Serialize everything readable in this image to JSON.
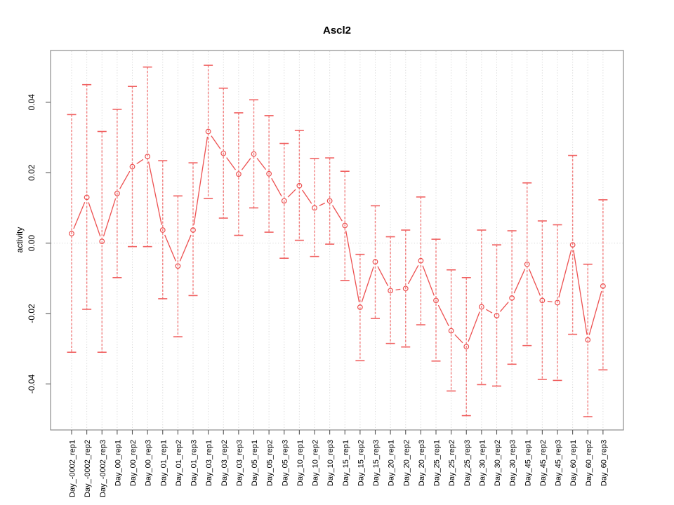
{
  "chart_data": {
    "type": "line",
    "title": "Ascl2",
    "xlabel": "",
    "ylabel": "activity",
    "legend": null,
    "grid": {
      "vertical_dotted_per_category": true,
      "zero_line_dotted": true
    },
    "ylim": [
      -0.053,
      0.055
    ],
    "y_ticks": [
      0.04,
      0.02,
      0.0,
      -0.02,
      -0.04
    ],
    "y_tick_labels": [
      "0.04",
      "0.02",
      "0.00",
      "-0.02",
      "-0.04"
    ],
    "point_style": "open-circle with error bars",
    "colors": {
      "series": "#ed5151",
      "error_bar": "#f28080",
      "error_cap": "#f06060",
      "gridline": "#d7d7d7",
      "axis_box": "#8c8c8c",
      "tick": "#555555",
      "text": "#000000"
    },
    "categories": [
      "Day_-0002_rep1",
      "Day_-0002_rep2",
      "Day_-0002_rep3",
      "Day_00_rep1",
      "Day_00_rep2",
      "Day_00_rep3",
      "Day_01_rep1",
      "Day_01_rep2",
      "Day_01_rep3",
      "Day_03_rep1",
      "Day_03_rep2",
      "Day_03_rep3",
      "Day_05_rep1",
      "Day_05_rep2",
      "Day_05_rep3",
      "Day_10_rep1",
      "Day_10_rep2",
      "Day_10_rep3",
      "Day_15_rep1",
      "Day_15_rep2",
      "Day_15_rep3",
      "Day_20_rep1",
      "Day_20_rep2",
      "Day_20_rep3",
      "Day_25_rep1",
      "Day_25_rep2",
      "Day_25_rep3",
      "Day_30_rep1",
      "Day_30_rep2",
      "Day_30_rep3",
      "Day_45_rep1",
      "Day_45_rep2",
      "Day_45_rep3",
      "Day_60_rep1",
      "Day_60_rep2",
      "Day_60_rep3"
    ],
    "series": [
      {
        "name": "activity",
        "means": [
          0.0027,
          0.013,
          0.0005,
          0.0141,
          0.0217,
          0.0246,
          0.0037,
          -0.0065,
          0.0037,
          0.0317,
          0.0255,
          0.0196,
          0.0253,
          0.0197,
          0.012,
          0.0163,
          0.01,
          0.012,
          0.005,
          -0.0182,
          -0.0053,
          -0.0135,
          -0.0129,
          -0.005,
          -0.0163,
          -0.0249,
          -0.0294,
          -0.0181,
          -0.0206,
          -0.0156,
          -0.006,
          -0.0163,
          -0.0169,
          -0.0005,
          -0.0275,
          -0.0122
        ],
        "lower": [
          -0.031,
          -0.0188,
          -0.031,
          -0.0098,
          -0.001,
          -0.001,
          -0.0158,
          -0.0266,
          -0.0149,
          0.0127,
          0.0071,
          0.0022,
          0.01,
          0.0031,
          -0.0043,
          0.0008,
          -0.0038,
          -0.0003,
          -0.0106,
          -0.0334,
          -0.0214,
          -0.0285,
          -0.0295,
          -0.0232,
          -0.0335,
          -0.042,
          -0.049,
          -0.0402,
          -0.0406,
          -0.0344,
          -0.0291,
          -0.0387,
          -0.039,
          -0.0259,
          -0.0493,
          -0.036
        ],
        "upper": [
          0.0365,
          0.045,
          0.0317,
          0.038,
          0.0445,
          0.05,
          0.0234,
          0.0134,
          0.0228,
          0.0505,
          0.044,
          0.037,
          0.0407,
          0.0362,
          0.0283,
          0.032,
          0.024,
          0.0242,
          0.0204,
          -0.0032,
          0.0106,
          0.0018,
          0.0037,
          0.0131,
          0.0011,
          -0.0076,
          -0.0098,
          0.0037,
          -0.0005,
          0.0035,
          0.0171,
          0.0063,
          0.0052,
          0.0249,
          -0.006,
          0.0123
        ]
      }
    ]
  }
}
